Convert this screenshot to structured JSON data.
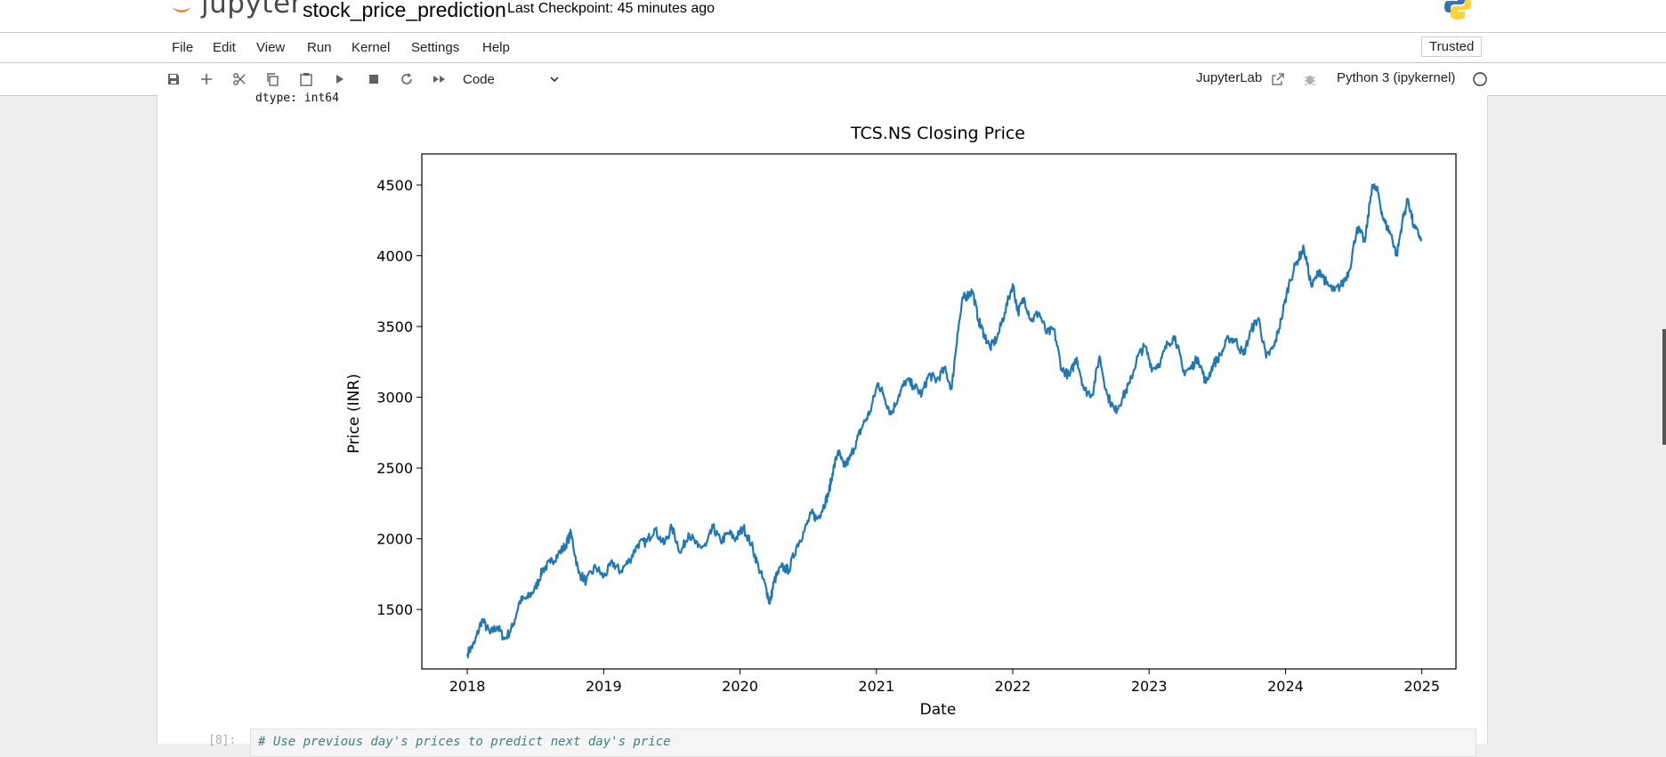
{
  "header": {
    "logo_text": "jupyter",
    "notebook_title": "stock_price_prediction",
    "checkpoint": "Last Checkpoint: 45 minutes ago"
  },
  "menu": {
    "items": [
      "File",
      "Edit",
      "View",
      "Run",
      "Kernel",
      "Settings",
      "Help"
    ],
    "trusted": "Trusted"
  },
  "toolbar": {
    "icons": [
      "save-icon",
      "add-cell-icon",
      "cut-icon",
      "copy-icon",
      "paste-icon",
      "run-icon",
      "stop-icon",
      "restart-icon",
      "run-all-icon"
    ],
    "cell_type": "Code",
    "jupyterlab_link": "JupyterLab",
    "kernel_name": "Python 3 (ipykernel)"
  },
  "output": {
    "dtype_text": "dtype: int64"
  },
  "next_cell": {
    "prompt": "[8]:",
    "code": "# Use previous day's prices to predict next day's price"
  },
  "chart_data": {
    "type": "line",
    "title": "TCS.NS Closing Price",
    "xlabel": "Date",
    "ylabel": "Price (INR)",
    "xlim": [
      "2017-09",
      "2025-04"
    ],
    "ylim": [
      1080,
      4720
    ],
    "x_ticks": [
      "2018",
      "2019",
      "2020",
      "2021",
      "2022",
      "2023",
      "2024",
      "2025"
    ],
    "y_ticks": [
      1500,
      2000,
      2500,
      3000,
      3500,
      4000,
      4500
    ],
    "line_color": "#1f77b4",
    "series": [
      {
        "x": [
          "2018-01-01",
          "2018-01-20",
          "2018-02-10",
          "2018-03-01",
          "2018-03-20",
          "2018-04-10",
          "2018-05-01",
          "2018-05-20",
          "2018-06-10",
          "2018-07-01",
          "2018-07-20",
          "2018-08-10",
          "2018-09-01",
          "2018-09-20",
          "2018-10-05",
          "2018-10-25",
          "2018-11-15",
          "2018-12-10",
          "2019-01-01",
          "2019-01-25",
          "2019-02-15",
          "2019-03-10",
          "2019-04-01",
          "2019-04-25",
          "2019-05-15",
          "2019-06-10",
          "2019-07-01",
          "2019-07-25",
          "2019-08-15",
          "2019-09-10",
          "2019-10-01",
          "2019-10-20",
          "2019-11-10",
          "2019-12-01",
          "2019-12-20",
          "2020-01-10",
          "2020-02-01",
          "2020-02-20",
          "2020-03-10",
          "2020-03-20",
          "2020-04-01",
          "2020-04-20",
          "2020-05-10",
          "2020-06-01",
          "2020-06-20",
          "2020-07-10",
          "2020-07-25",
          "2020-08-10",
          "2020-08-25",
          "2020-09-05",
          "2020-09-20",
          "2020-10-05",
          "2020-10-20",
          "2020-11-10",
          "2020-11-25",
          "2020-12-15",
          "2021-01-05",
          "2021-01-20",
          "2021-02-10",
          "2021-03-01",
          "2021-03-20",
          "2021-04-10",
          "2021-05-01",
          "2021-05-20",
          "2021-06-10",
          "2021-07-01",
          "2021-07-20",
          "2021-08-05",
          "2021-08-20",
          "2021-09-01",
          "2021-09-15",
          "2021-10-01",
          "2021-10-15",
          "2021-11-01",
          "2021-11-20",
          "2021-12-10",
          "2022-01-01",
          "2022-01-15",
          "2022-02-01",
          "2022-02-20",
          "2022-03-10",
          "2022-04-01",
          "2022-04-20",
          "2022-05-10",
          "2022-06-01",
          "2022-06-20",
          "2022-07-10",
          "2022-08-01",
          "2022-08-20",
          "2022-09-10",
          "2022-10-01",
          "2022-10-20",
          "2022-11-10",
          "2022-12-01",
          "2022-12-20",
          "2023-01-10",
          "2023-02-01",
          "2023-02-20",
          "2023-03-10",
          "2023-04-01",
          "2023-04-20",
          "2023-05-10",
          "2023-06-01",
          "2023-06-20",
          "2023-07-10",
          "2023-08-01",
          "2023-08-20",
          "2023-09-10",
          "2023-10-01",
          "2023-10-20",
          "2023-11-10",
          "2023-12-01",
          "2023-12-20",
          "2024-01-10",
          "2024-02-01",
          "2024-02-20",
          "2024-03-10",
          "2024-04-01",
          "2024-04-20",
          "2024-05-10",
          "2024-06-01",
          "2024-06-20",
          "2024-07-10",
          "2024-08-01",
          "2024-08-20",
          "2024-09-05",
          "2024-09-20",
          "2024-10-10",
          "2024-10-25",
          "2024-11-10",
          "2024-11-25",
          "2024-12-10",
          "2024-12-31"
        ],
        "values": [
          1190,
          1260,
          1430,
          1330,
          1380,
          1290,
          1380,
          1560,
          1580,
          1650,
          1780,
          1830,
          1890,
          1950,
          2040,
          1760,
          1700,
          1800,
          1730,
          1830,
          1770,
          1850,
          1960,
          1980,
          2070,
          1960,
          2080,
          1900,
          2040,
          1940,
          1950,
          2080,
          1980,
          2040,
          2000,
          2080,
          1960,
          1800,
          1650,
          1540,
          1700,
          1800,
          1780,
          1950,
          2050,
          2180,
          2140,
          2220,
          2320,
          2460,
          2620,
          2510,
          2560,
          2700,
          2800,
          2900,
          3100,
          3020,
          2880,
          3020,
          3120,
          3080,
          3020,
          3160,
          3120,
          3200,
          3060,
          3450,
          3700,
          3720,
          3750,
          3540,
          3450,
          3350,
          3420,
          3600,
          3800,
          3600,
          3700,
          3540,
          3600,
          3450,
          3480,
          3200,
          3150,
          3280,
          3050,
          3020,
          3290,
          3020,
          2900,
          2990,
          3100,
          3290,
          3360,
          3200,
          3250,
          3380,
          3430,
          3180,
          3200,
          3280,
          3100,
          3230,
          3300,
          3420,
          3400,
          3300,
          3480,
          3560,
          3280,
          3360,
          3550,
          3800,
          3960,
          4050,
          3780,
          3900,
          3800,
          3750,
          3800,
          3900,
          4200,
          4100,
          4500,
          4450,
          4250,
          4150,
          4000,
          4250,
          4400,
          4200,
          4120
        ]
      }
    ]
  }
}
